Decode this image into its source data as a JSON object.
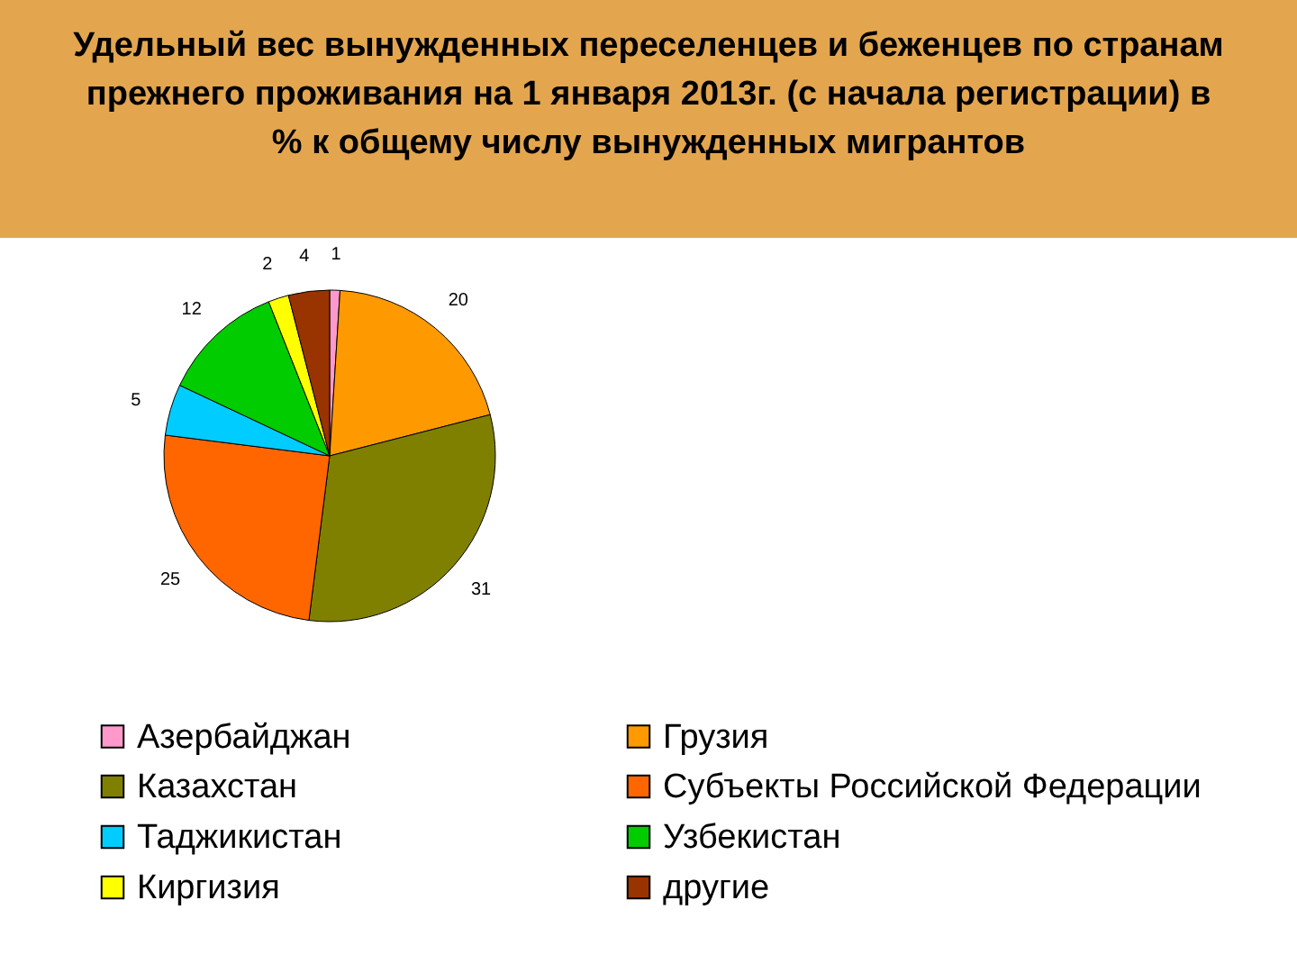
{
  "chart_data": {
    "type": "pie",
    "title": "Удельный вес вынужденных переселенцев и беженцев по странам прежнего проживания на 1 января 2013г. (с начала регистрации) в % к общему числу вынужденных мигрантов",
    "categories": [
      "Азербайджан",
      "Грузия",
      "Казахстан",
      "Субъекты Российской Федерации",
      "Таджикистан",
      "Узбекистан",
      "Киргизия",
      "другие"
    ],
    "values": [
      1,
      20,
      31,
      25,
      5,
      12,
      2,
      4
    ],
    "colors": [
      "#ff99cc",
      "#ff9900",
      "#808000",
      "#ff6600",
      "#00ccff",
      "#00cc00",
      "#ffff00",
      "#993300"
    ],
    "data_labels": true,
    "legend": "bottom"
  }
}
